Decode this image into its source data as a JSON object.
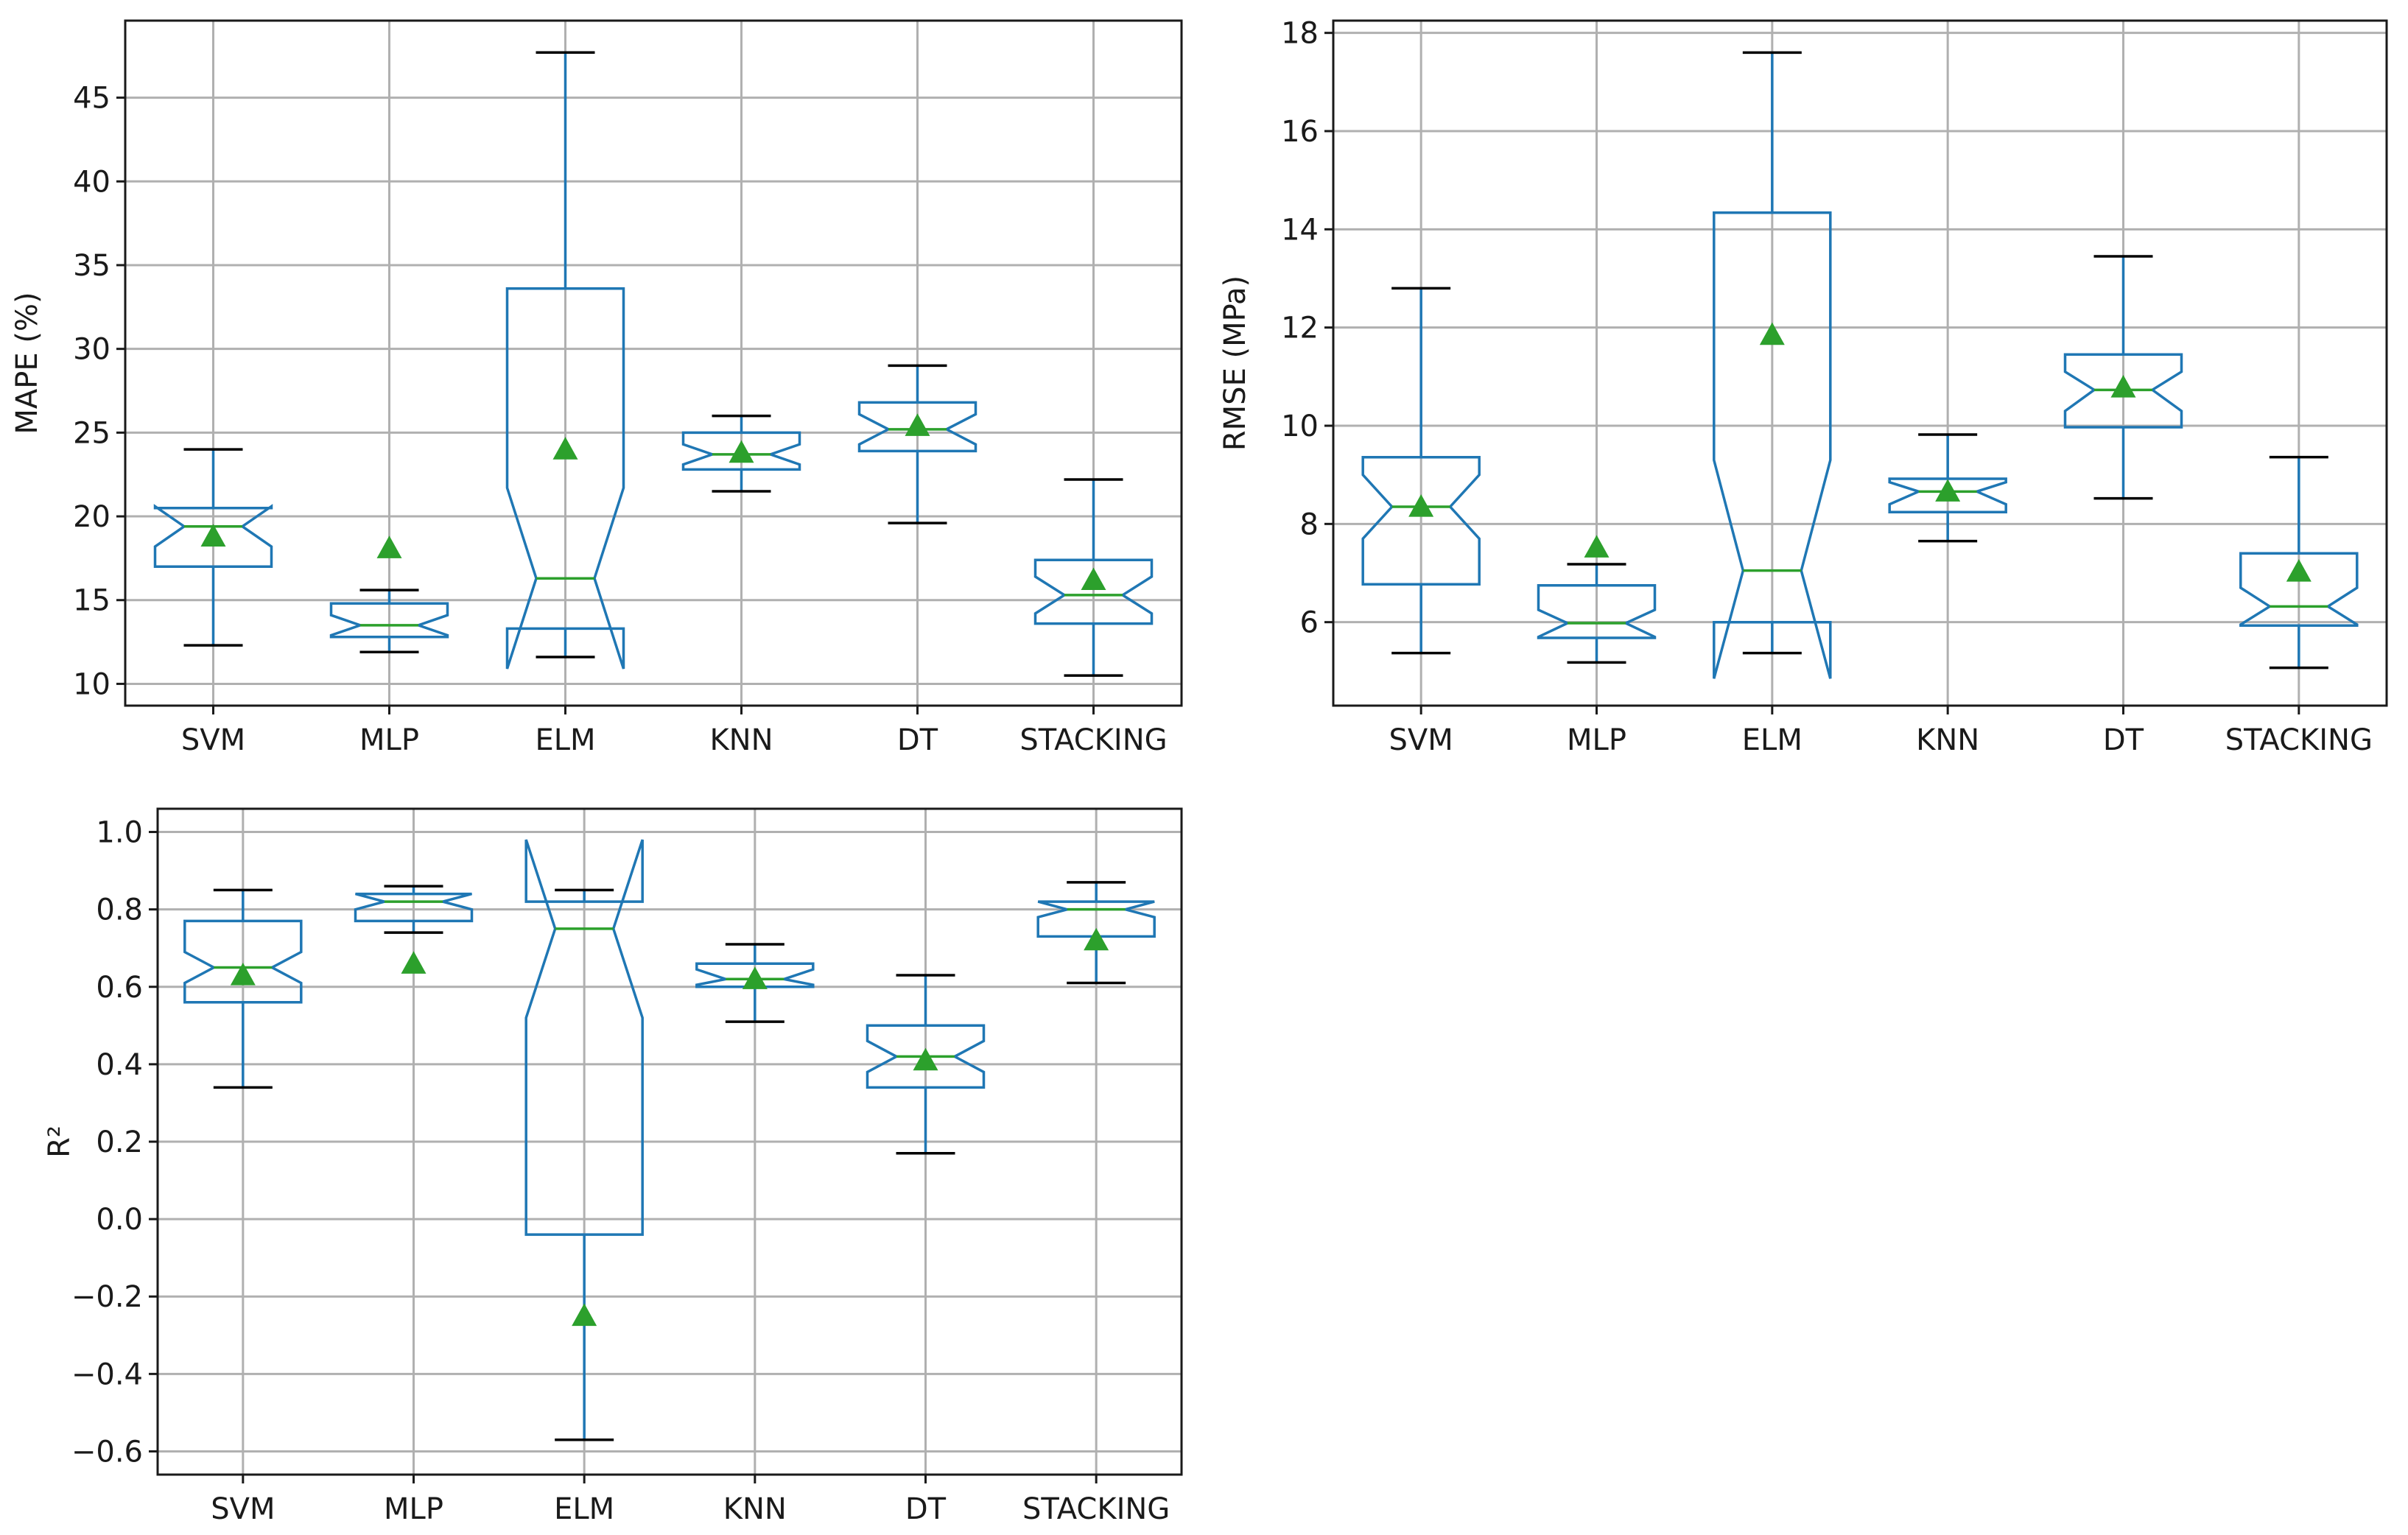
{
  "figure_title": "",
  "colors": {
    "box": "#1f77b4",
    "median": "#2ca02c",
    "mean_marker": "#2ca02c",
    "cap": "#000000",
    "grid": "#b0b0b0"
  },
  "chart_data": [
    {
      "type": "box",
      "id": "mape",
      "title": "",
      "xlabel": "",
      "ylabel": "MAPE (%)",
      "ylim": [
        8.7,
        49.6
      ],
      "yticks": [
        10,
        15,
        20,
        25,
        30,
        35,
        40,
        45
      ],
      "ytick_labels": [
        "10",
        "15",
        "20",
        "25",
        "30",
        "35",
        "40",
        "45"
      ],
      "grid": true,
      "categories": [
        "SVM",
        "MLP",
        "ELM",
        "KNN",
        "DT",
        "STACKING"
      ],
      "boxes": [
        {
          "whislo": 12.3,
          "q1": 17.0,
          "med": 19.4,
          "q3": 20.5,
          "whishi": 24.0,
          "mean": 18.8,
          "notch_lo": 18.2,
          "notch_hi": 20.6
        },
        {
          "whislo": 11.9,
          "q1": 12.8,
          "med": 13.5,
          "q3": 14.8,
          "whishi": 15.6,
          "mean": 18.1,
          "notch_lo": 12.9,
          "notch_hi": 14.1
        },
        {
          "whislo": 11.6,
          "q1": 13.3,
          "med": 16.3,
          "q3": 33.6,
          "whishi": 47.7,
          "mean": 24.0,
          "notch_lo": 10.9,
          "notch_hi": 21.7
        },
        {
          "whislo": 21.5,
          "q1": 22.8,
          "med": 23.7,
          "q3": 25.0,
          "whishi": 26.0,
          "mean": 23.8,
          "notch_lo": 23.1,
          "notch_hi": 24.3
        },
        {
          "whislo": 19.6,
          "q1": 23.9,
          "med": 25.2,
          "q3": 26.8,
          "whishi": 29.0,
          "mean": 25.4,
          "notch_lo": 24.3,
          "notch_hi": 26.1
        },
        {
          "whislo": 10.5,
          "q1": 13.6,
          "med": 15.3,
          "q3": 17.4,
          "whishi": 22.2,
          "mean": 16.2,
          "notch_lo": 14.2,
          "notch_hi": 16.4
        }
      ]
    },
    {
      "type": "box",
      "id": "rmse",
      "title": "",
      "xlabel": "",
      "ylabel": "RMSE (MPa)",
      "ylim": [
        4.3,
        18.25
      ],
      "yticks": [
        6,
        8,
        10,
        12,
        14,
        16,
        18
      ],
      "ytick_labels": [
        "6",
        "8",
        "10",
        "12",
        "14",
        "16",
        "18"
      ],
      "grid": true,
      "categories": [
        "SVM",
        "MLP",
        "ELM",
        "KNN",
        "DT",
        "STACKING"
      ],
      "boxes": [
        {
          "whislo": 5.37,
          "q1": 6.77,
          "med": 8.35,
          "q3": 9.36,
          "whishi": 12.8,
          "mean": 8.35,
          "notch_lo": 7.7,
          "notch_hi": 9.0
        },
        {
          "whislo": 5.18,
          "q1": 5.68,
          "med": 5.98,
          "q3": 6.75,
          "whishi": 7.18,
          "mean": 7.52,
          "notch_lo": 5.7,
          "notch_hi": 6.25
        },
        {
          "whislo": 5.37,
          "q1": 6.0,
          "med": 7.05,
          "q3": 14.34,
          "whishi": 17.6,
          "mean": 11.85,
          "notch_lo": 4.85,
          "notch_hi": 9.3
        },
        {
          "whislo": 7.65,
          "q1": 8.24,
          "med": 8.66,
          "q3": 8.92,
          "whishi": 9.82,
          "mean": 8.66,
          "notch_lo": 8.4,
          "notch_hi": 8.85
        },
        {
          "whislo": 8.52,
          "q1": 9.97,
          "med": 10.73,
          "q3": 11.45,
          "whishi": 13.45,
          "mean": 10.78,
          "notch_lo": 10.3,
          "notch_hi": 11.1
        },
        {
          "whislo": 5.07,
          "q1": 5.93,
          "med": 6.32,
          "q3": 7.4,
          "whishi": 9.36,
          "mean": 7.03,
          "notch_lo": 5.95,
          "notch_hi": 6.7
        }
      ]
    },
    {
      "type": "box",
      "id": "r2",
      "title": "",
      "xlabel": "",
      "ylabel": "R²",
      "ylim": [
        -0.66,
        1.06
      ],
      "yticks": [
        -0.6,
        -0.4,
        -0.2,
        0.0,
        0.2,
        0.4,
        0.6,
        0.8,
        1.0
      ],
      "ytick_labels": [
        "−0.6",
        "−0.4",
        "−0.2",
        "0.0",
        "0.2",
        "0.4",
        "0.6",
        "0.8",
        "1.0"
      ],
      "grid": true,
      "categories": [
        "SVM",
        "MLP",
        "ELM",
        "KNN",
        "DT",
        "STACKING"
      ],
      "boxes": [
        {
          "whislo": 0.34,
          "q1": 0.56,
          "med": 0.65,
          "q3": 0.77,
          "whishi": 0.85,
          "mean": 0.63,
          "notch_lo": 0.61,
          "notch_hi": 0.69
        },
        {
          "whislo": 0.74,
          "q1": 0.77,
          "med": 0.82,
          "q3": 0.84,
          "whishi": 0.86,
          "mean": 0.66,
          "notch_lo": 0.8,
          "notch_hi": 0.84
        },
        {
          "whislo": -0.57,
          "q1": -0.04,
          "med": 0.75,
          "q3": 0.82,
          "whishi": 0.85,
          "mean": -0.25,
          "notch_lo": 0.52,
          "notch_hi": 0.98
        },
        {
          "whislo": 0.51,
          "q1": 0.6,
          "med": 0.62,
          "q3": 0.66,
          "whishi": 0.71,
          "mean": 0.62,
          "notch_lo": 0.605,
          "notch_hi": 0.645
        },
        {
          "whislo": 0.17,
          "q1": 0.34,
          "med": 0.42,
          "q3": 0.5,
          "whishi": 0.63,
          "mean": 0.41,
          "notch_lo": 0.38,
          "notch_hi": 0.46
        },
        {
          "whislo": 0.61,
          "q1": 0.73,
          "med": 0.8,
          "q3": 0.82,
          "whishi": 0.87,
          "mean": 0.72,
          "notch_lo": 0.78,
          "notch_hi": 0.82
        }
      ]
    }
  ]
}
